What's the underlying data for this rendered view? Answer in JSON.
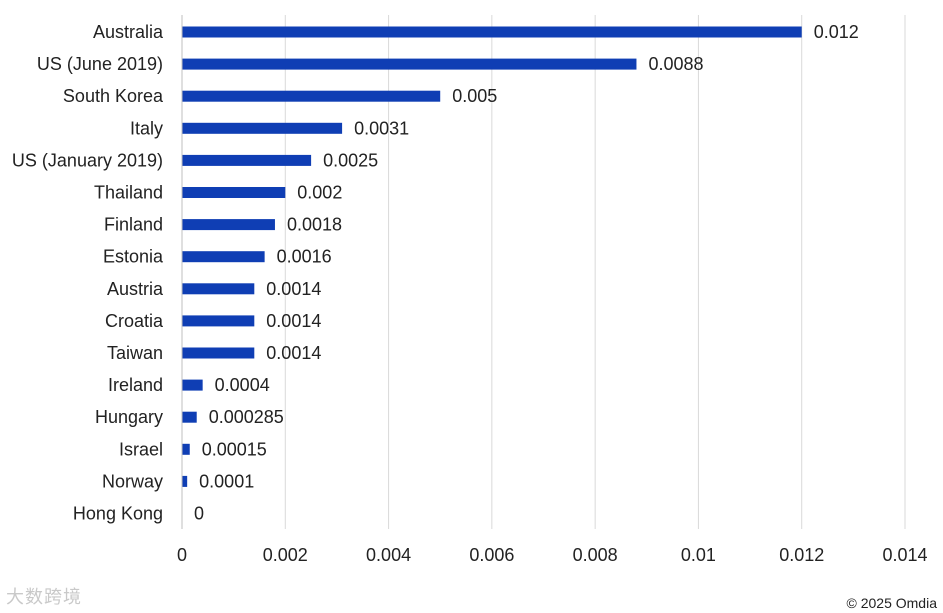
{
  "chart_data": {
    "type": "bar",
    "orientation": "horizontal",
    "categories": [
      "Australia",
      "US (June 2019)",
      "South Korea",
      "Italy",
      "US (January 2019)",
      "Thailand",
      "Finland",
      "Estonia",
      "Austria",
      "Croatia",
      "Taiwan",
      "Ireland",
      "Hungary",
      "Israel",
      "Norway",
      "Hong Kong"
    ],
    "values": [
      0.012,
      0.0088,
      0.005,
      0.0031,
      0.0025,
      0.002,
      0.0018,
      0.0016,
      0.0014,
      0.0014,
      0.0014,
      0.0004,
      0.000285,
      0.00015,
      0.0001,
      0
    ],
    "data_labels": [
      "0.012",
      "0.0088",
      "0.005",
      "0.0031",
      "0.0025",
      "0.002",
      "0.0018",
      "0.0016",
      "0.0014",
      "0.0014",
      "0.0014",
      "0.0004",
      "0.000285",
      "0.00015",
      "0.0001",
      "0"
    ],
    "xlim": [
      0,
      0.014
    ],
    "x_ticks": [
      0,
      0.002,
      0.004,
      0.006,
      0.008,
      0.01,
      0.012,
      0.014
    ],
    "x_tick_labels": [
      "0",
      "0.002",
      "0.004",
      "0.006",
      "0.008",
      "0.01",
      "0.012",
      "0.014"
    ],
    "title": "",
    "xlabel": "",
    "ylabel": "",
    "grid": "vertical",
    "bar_color": "#0f3eb4",
    "grid_color": "#d9d9d9"
  },
  "footer": {
    "copyright": "© 2025 Omdia",
    "watermark": "大数跨境"
  }
}
